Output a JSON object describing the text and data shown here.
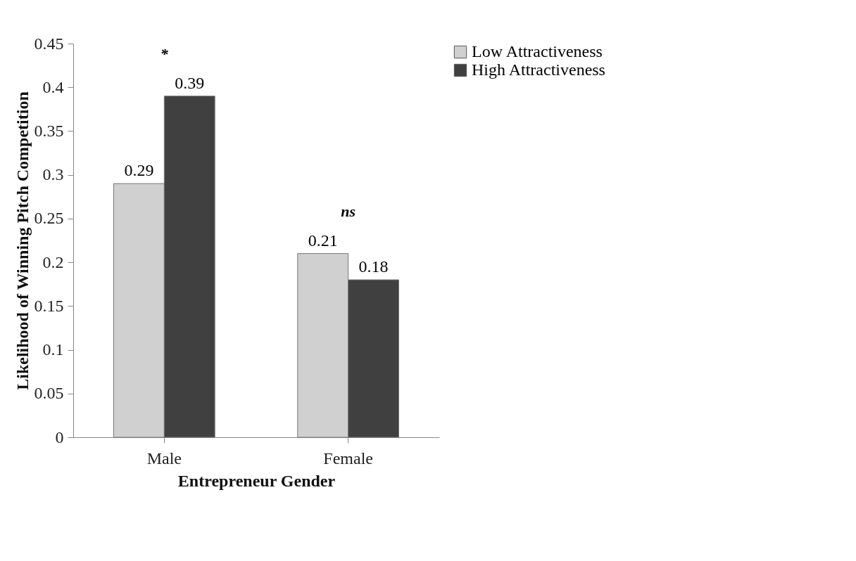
{
  "chart_data": {
    "type": "bar",
    "xlabel": "Entrepreneur Gender",
    "ylabel": "Likelihood of Winning Pitch Competition",
    "categories": [
      "Male",
      "Female"
    ],
    "series": [
      {
        "name": "Low Attractiveness",
        "color": "#d0d0d0",
        "values": [
          0.29,
          0.21
        ]
      },
      {
        "name": "High Attractiveness",
        "color": "#404040",
        "values": [
          0.39,
          0.18
        ]
      }
    ],
    "ylim": [
      0,
      0.45
    ],
    "yticks": [
      0,
      0.05,
      0.1,
      0.15,
      0.2,
      0.25,
      0.3,
      0.35,
      0.4,
      0.45
    ],
    "data_labels": true,
    "grid": false,
    "legend": "right",
    "annotations": [
      "*",
      "ns"
    ]
  }
}
